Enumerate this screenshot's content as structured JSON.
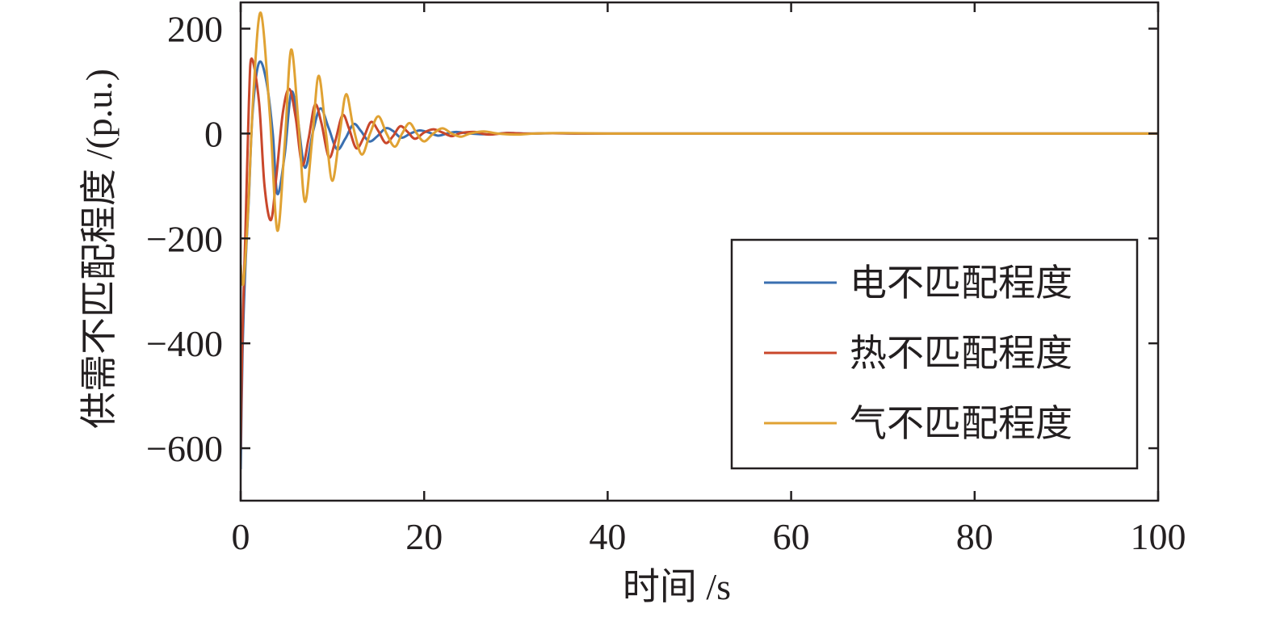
{
  "chart_data": {
    "type": "line",
    "xlabel": "时间 /s",
    "ylabel": "供需不匹配程度 /(p.u.)",
    "xlim": [
      0,
      100
    ],
    "ylim": [
      -700,
      250
    ],
    "xticks": [
      "0",
      "20",
      "40",
      "60",
      "80",
      "100"
    ],
    "yticks": [
      "200",
      "0",
      "−200",
      "−400",
      "−600"
    ],
    "grid": false,
    "legend_position": "bottom-right",
    "series": [
      {
        "name": "电不匹配程度",
        "color": "#3a6fb0",
        "x": [
          0,
          0.2,
          0.5,
          0.9,
          1.3,
          2.0,
          2.8,
          3.5,
          4.0,
          4.8,
          5.5,
          6.2,
          7.0,
          7.9,
          8.7,
          9.6,
          10.5,
          11.4,
          12.3,
          13.1,
          14.0,
          14.9,
          15.8,
          16.6,
          17.5,
          18.5,
          19.5,
          20.5,
          21.5,
          22.5,
          23.5,
          25.0,
          27.0,
          29.0,
          31.0,
          34.0,
          37.0,
          40.0,
          45.0,
          50.0,
          100.0
        ],
        "y": [
          -640,
          -420,
          -260,
          -120,
          40,
          135,
          100,
          0,
          -115,
          -40,
          78,
          30,
          -65,
          5,
          48,
          10,
          -30,
          -10,
          18,
          5,
          -15,
          -5,
          10,
          5,
          -8,
          0,
          6,
          2,
          -4,
          0,
          3,
          0,
          -1.5,
          1,
          0,
          0.5,
          0,
          0,
          0,
          0,
          0
        ]
      },
      {
        "name": "热不匹配程度",
        "color": "#c9472b",
        "x": [
          0,
          0.2,
          0.5,
          0.9,
          1.2,
          2.0,
          2.6,
          3.3,
          3.9,
          4.6,
          5.3,
          6.0,
          6.7,
          7.4,
          8.1,
          8.8,
          9.6,
          10.3,
          11.1,
          11.8,
          12.6,
          13.4,
          14.2,
          15.0,
          15.8,
          16.6,
          17.4,
          18.2,
          19.0,
          20.0,
          21.0,
          22.0,
          23.0,
          24.0,
          25.5,
          27.0,
          29.0,
          31.0,
          34.0,
          37.0,
          40.0,
          50.0,
          100.0
        ],
        "y": [
          -600,
          -380,
          -200,
          60,
          143,
          60,
          -100,
          -165,
          -80,
          40,
          85,
          30,
          -60,
          -10,
          55,
          20,
          -45,
          -15,
          35,
          10,
          -28,
          -8,
          22,
          5,
          -18,
          -5,
          14,
          3,
          -10,
          2,
          8,
          2,
          -5,
          1,
          3,
          -2,
          1,
          0,
          0.5,
          0,
          0,
          0,
          0
        ]
      },
      {
        "name": "气不匹配程度",
        "color": "#e0a233",
        "x": [
          0,
          0.3,
          0.8,
          1.4,
          2.2,
          3.2,
          4.0,
          4.8,
          5.5,
          6.3,
          7.0,
          7.8,
          8.5,
          9.3,
          10.0,
          10.8,
          11.5,
          12.3,
          13.2,
          14.1,
          15.0,
          15.9,
          16.8,
          17.6,
          18.4,
          19.2,
          20.0,
          21.0,
          22.0,
          23.0,
          24.0,
          25.0,
          26.5,
          28.0,
          30.0,
          32.0,
          35.0,
          40.0,
          45.0,
          50.0,
          100.0
        ],
        "y": [
          -250,
          -285,
          -150,
          80,
          230,
          30,
          -185,
          -20,
          160,
          20,
          -130,
          -10,
          110,
          0,
          -90,
          0,
          75,
          10,
          -40,
          0,
          33,
          0,
          -25,
          0,
          20,
          0,
          -15,
          0,
          10,
          0,
          -6,
          0,
          4,
          0,
          -2,
          0,
          1,
          0,
          0,
          0,
          0
        ]
      }
    ]
  }
}
